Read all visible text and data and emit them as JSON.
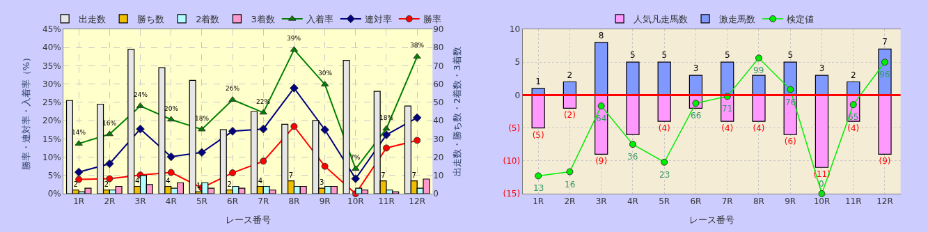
{
  "chart_data": [
    {
      "type": "bar",
      "xlabel": "レース番号",
      "ylabel": "勝率・連対率・入着率（%）",
      "y2label": "出走数・勝ち数・2着数・3着数",
      "categories": [
        "1R",
        "2R",
        "3R",
        "4R",
        "5R",
        "6R",
        "7R",
        "8R",
        "9R",
        "10R",
        "11R",
        "12R"
      ],
      "series": [
        {
          "name": "出走数",
          "color": "#e6e6e6",
          "axis": "y2",
          "values": [
            51,
            49,
            79,
            69,
            62,
            35,
            45,
            38,
            40,
            73,
            56,
            48
          ]
        },
        {
          "name": "勝ち数",
          "color": "#f0c000",
          "axis": "y2",
          "values": [
            2,
            2,
            4,
            4,
            1,
            2,
            4,
            7,
            3,
            0,
            7,
            7
          ],
          "value_labels": [
            "2",
            "2",
            "4",
            "4",
            "1",
            "2",
            "4",
            "7",
            "3",
            null,
            "7",
            "7"
          ]
        },
        {
          "name": "2着数",
          "color": "#b3ffff",
          "axis": "y2",
          "values": [
            1,
            2,
            10,
            3,
            6,
            4,
            4,
            4,
            4,
            3,
            2,
            3
          ]
        },
        {
          "name": "3着数",
          "color": "#ff99cc",
          "axis": "y2",
          "values": [
            3,
            4,
            5,
            6,
            3,
            3,
            2,
            4,
            4,
            2,
            1,
            8
          ]
        },
        {
          "name": "入着率",
          "type": "line",
          "color": "#008000",
          "marker": "triangle",
          "values": [
            13.7,
            16.3,
            24.0,
            20.3,
            17.6,
            25.7,
            22.2,
            39.4,
            29.9,
            6.8,
            17.8,
            37.5
          ],
          "value_labels": [
            "14%",
            "16%",
            "24%",
            "20%",
            "18%",
            "26%",
            "22%",
            "39%",
            "30%",
            "7%",
            "18%",
            "38%"
          ]
        },
        {
          "name": "連対率",
          "type": "line",
          "color": "#000080",
          "marker": "diamond",
          "values": [
            5.9,
            8.2,
            17.7,
            10.1,
            11.3,
            17.1,
            17.7,
            28.9,
            17.5,
            4.1,
            16.1,
            20.8
          ]
        },
        {
          "name": "勝率",
          "type": "line",
          "color": "#ff0000",
          "marker": "circle",
          "values": [
            3.9,
            4.1,
            5.1,
            5.8,
            1.6,
            5.7,
            8.9,
            18.4,
            7.5,
            0,
            12.5,
            14.6
          ]
        }
      ],
      "ylim": [
        0,
        45
      ],
      "yticks": [
        {
          "value": 0,
          "label": "0%"
        },
        {
          "value": 5,
          "label": "5%"
        },
        {
          "value": 10,
          "label": "10%"
        },
        {
          "value": 15,
          "label": "15%"
        },
        {
          "value": 20,
          "label": "20%"
        },
        {
          "value": 25,
          "label": "25%"
        },
        {
          "value": 30,
          "label": "30%"
        },
        {
          "value": 35,
          "label": "35%"
        },
        {
          "value": 40,
          "label": "40%"
        },
        {
          "value": 45,
          "label": "45%"
        }
      ],
      "y2lim": [
        0,
        90
      ],
      "y2ticks": [
        0,
        10,
        20,
        30,
        40,
        50,
        60,
        70,
        80,
        90
      ],
      "grid": true,
      "legend": "top",
      "line_style": "solid"
    },
    {
      "type": "bar",
      "xlabel": "レース番号",
      "stacked": true,
      "categories": [
        "1R",
        "2R",
        "3R",
        "4R",
        "5R",
        "6R",
        "7R",
        "8R",
        "9R",
        "10R",
        "11R",
        "12R"
      ],
      "series": [
        {
          "name": "人気凡走馬数",
          "color": "#ff99ff",
          "values": [
            -5,
            -2,
            -9,
            -6,
            -4,
            -2,
            -4,
            -4,
            -6,
            -11,
            -4,
            -9
          ],
          "value_labels": [
            "(5)",
            "(2)",
            "(9)",
            null,
            "(4)",
            null,
            "(4)",
            "(4)",
            "(6)",
            "(11)",
            "(4)",
            "(9)"
          ]
        },
        {
          "name": "激走馬数",
          "color": "#8099ff",
          "values": [
            1,
            2,
            8,
            5,
            5,
            3,
            5,
            3,
            5,
            3,
            2,
            7
          ],
          "value_labels": [
            "1",
            "2",
            "8",
            "5",
            "5",
            "3",
            "5",
            null,
            "5",
            "3",
            "2",
            "7"
          ]
        },
        {
          "name": "検定値",
          "type": "line",
          "color": "#00ee00",
          "marker": "circle",
          "axis": "y2",
          "values": [
            13,
            16,
            64,
            36,
            23,
            66,
            71,
            99,
            76,
            0,
            65,
            96
          ],
          "value_labels": [
            "13",
            "16",
            "64",
            "36",
            "23",
            "66",
            "71",
            "99",
            "76",
            "0",
            "65",
            "96"
          ]
        }
      ],
      "ylim": [
        -15,
        10
      ],
      "yticks": [
        {
          "value": -15,
          "label": "(15)"
        },
        {
          "value": -10,
          "label": "(10)"
        },
        {
          "value": -5,
          "label": "(5)"
        },
        0,
        5,
        10
      ],
      "y2lim": [
        0,
        120
      ],
      "tick_labels": "xy",
      "ref_lines": [
        {
          "axis": "y",
          "value": 0,
          "color": "#ff0000"
        }
      ],
      "grid": true,
      "legend": "top",
      "line_style": "solid"
    }
  ]
}
